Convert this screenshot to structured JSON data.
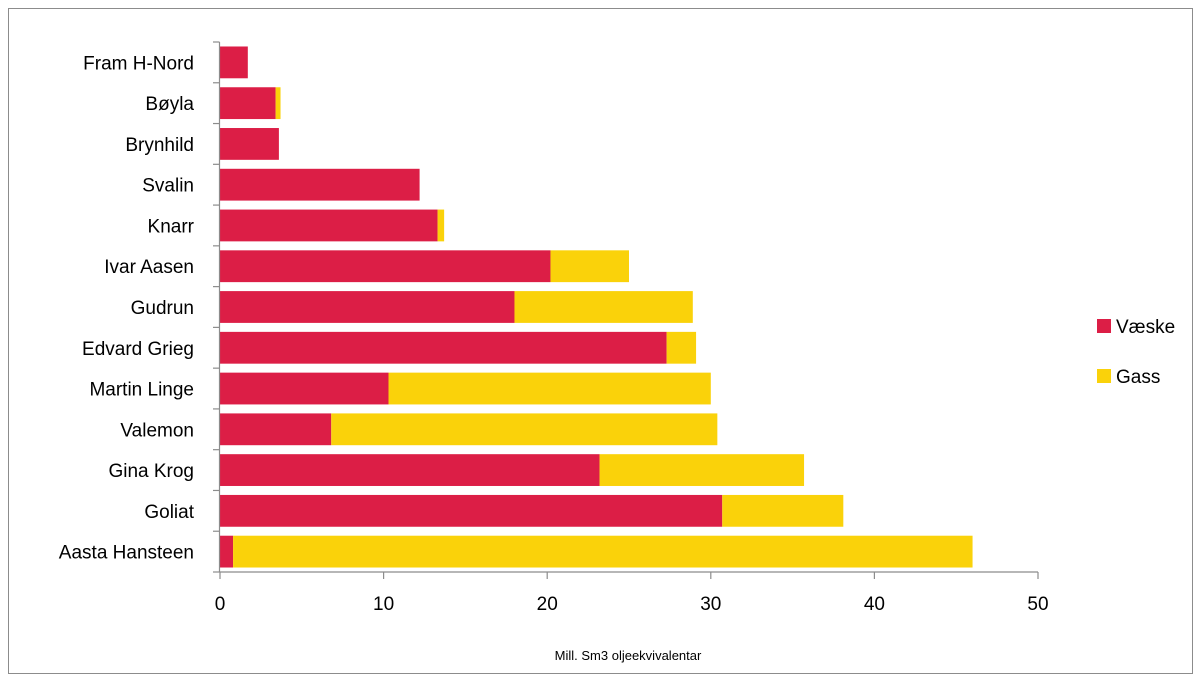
{
  "chart_data": {
    "type": "bar",
    "orientation": "horizontal",
    "stacked": true,
    "categories": [
      "Fram H-Nord",
      "Bøyla",
      "Brynhild",
      "Svalin",
      "Knarr",
      "Ivar Aasen",
      "Gudrun",
      "Edvard Grieg",
      "Martin Linge",
      "Valemon",
      "Gina Krog",
      "Goliat",
      "Aasta Hansteen"
    ],
    "series": [
      {
        "name": "Væske",
        "color": "#dc1e46",
        "values": [
          1.7,
          3.4,
          3.6,
          12.2,
          13.3,
          20.2,
          18.0,
          27.3,
          10.3,
          6.8,
          23.2,
          30.7,
          0.8
        ]
      },
      {
        "name": "Gass",
        "color": "#fad20a",
        "values": [
          0.0,
          0.3,
          0.0,
          0.0,
          0.4,
          4.8,
          10.9,
          1.8,
          19.7,
          23.6,
          12.5,
          7.4,
          45.2
        ]
      }
    ],
    "xticks": [
      0,
      10,
      20,
      30,
      40,
      50
    ],
    "xlim": [
      0,
      50
    ],
    "xlabel": "Mill. Sm3 oljeekvivalentar",
    "ylabel": "",
    "title": "",
    "legend_position": "right",
    "grid": false
  }
}
